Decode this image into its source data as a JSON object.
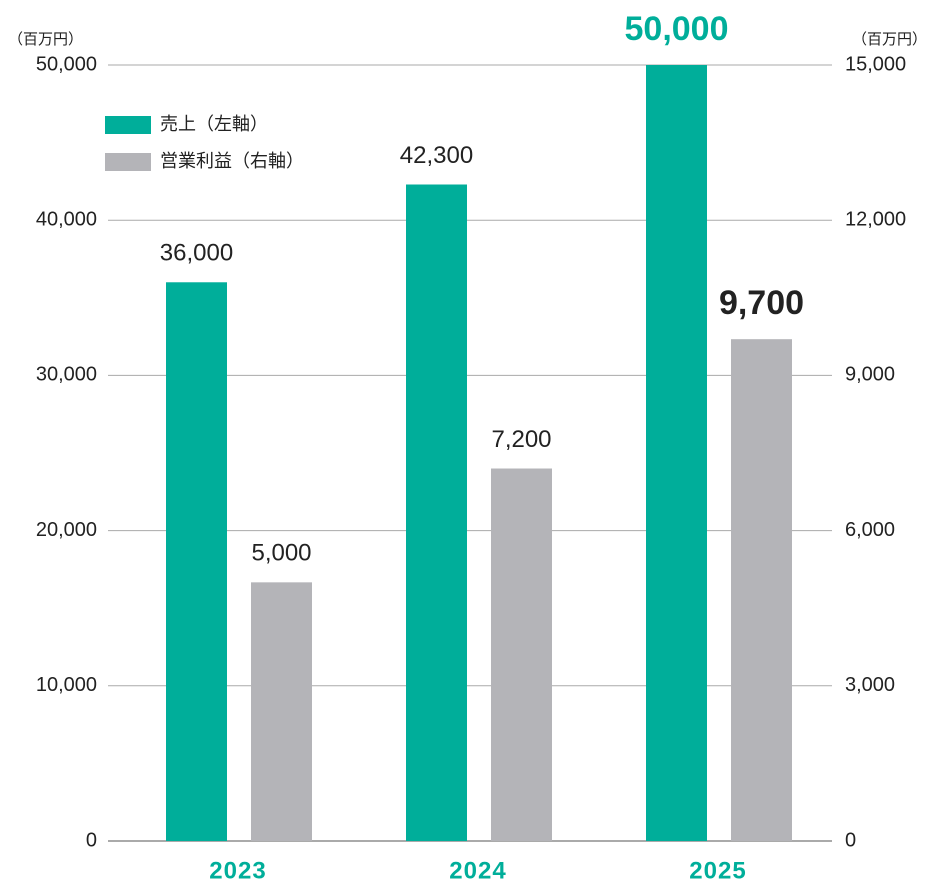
{
  "chart_data": {
    "type": "bar",
    "y_unit": "（百万円）",
    "y2_unit": "（百万円）",
    "categories": [
      "2023",
      "2024",
      "2025"
    ],
    "series": [
      {
        "name": "売上（左軸）",
        "color": "#00ae9a",
        "values": [
          36000,
          42300,
          50000
        ],
        "value_labels": [
          "36,000",
          "42,300",
          "50,000"
        ]
      },
      {
        "name": "営業利益（右軸）",
        "color": "#b4b4b8",
        "axis": "y2",
        "values": [
          5000,
          7200,
          9700
        ],
        "value_labels": [
          "5,000",
          "7,200",
          "9,700"
        ]
      }
    ],
    "ylim": [
      0,
      50000
    ],
    "yticks": [
      0,
      {
        "value": 10000,
        "label": "10,000"
      },
      {
        "value": 20000,
        "label": "20,000"
      },
      {
        "value": 30000,
        "label": "30,000"
      },
      {
        "value": 40000,
        "label": "40,000"
      },
      {
        "value": 50000,
        "label": "50,000"
      }
    ],
    "y2lim": [
      0,
      15000
    ],
    "y2ticks": [
      0,
      {
        "value": 3000,
        "label": "3,000"
      },
      {
        "value": 6000,
        "label": "6,000"
      },
      {
        "value": 9000,
        "label": "9,000"
      },
      {
        "value": 12000,
        "label": "12,000"
      },
      {
        "value": 15000,
        "label": "15,000"
      }
    ],
    "grid": true,
    "legend": "top-left"
  }
}
